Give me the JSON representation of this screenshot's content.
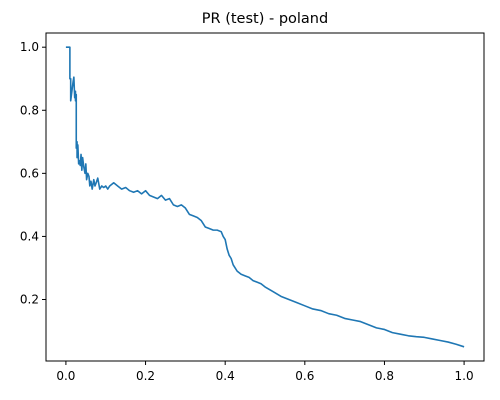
{
  "chart_data": {
    "type": "line",
    "title": "PR (test) - poland",
    "xlabel": "",
    "ylabel": "",
    "xlim": [
      -0.05,
      1.05
    ],
    "ylim": [
      0.005,
      1.045
    ],
    "x_ticks": [
      {
        "value": 0.0,
        "label": "0.0"
      },
      {
        "value": 0.2,
        "label": "0.2"
      },
      {
        "value": 0.4,
        "label": "0.4"
      },
      {
        "value": 0.6,
        "label": "0.6"
      },
      {
        "value": 0.8,
        "label": "0.8"
      },
      {
        "value": 1.0,
        "label": "1.0"
      }
    ],
    "y_ticks": [
      {
        "value": 0.2,
        "label": "0.2"
      },
      {
        "value": 0.4,
        "label": "0.4"
      },
      {
        "value": 0.6,
        "label": "0.6"
      },
      {
        "value": 0.8,
        "label": "0.8"
      },
      {
        "value": 1.0,
        "label": "1.0"
      }
    ],
    "grid": false,
    "line_color": "#1f77b4",
    "series": [
      {
        "x": [
          0.0,
          0.01,
          0.01,
          0.012,
          0.012,
          0.016,
          0.018,
          0.02,
          0.022,
          0.024,
          0.024,
          0.026,
          0.026,
          0.028,
          0.028,
          0.03,
          0.032,
          0.034,
          0.036,
          0.038,
          0.04,
          0.042,
          0.045,
          0.048,
          0.05,
          0.052,
          0.055,
          0.058,
          0.06,
          0.063,
          0.066,
          0.07,
          0.073,
          0.076,
          0.08,
          0.085,
          0.09,
          0.095,
          0.1,
          0.105,
          0.11,
          0.115,
          0.12,
          0.13,
          0.14,
          0.15,
          0.16,
          0.17,
          0.18,
          0.19,
          0.2,
          0.21,
          0.22,
          0.23,
          0.24,
          0.25,
          0.26,
          0.27,
          0.28,
          0.29,
          0.3,
          0.31,
          0.32,
          0.33,
          0.34,
          0.35,
          0.36,
          0.37,
          0.38,
          0.39,
          0.395,
          0.4,
          0.405,
          0.41,
          0.415,
          0.42,
          0.425,
          0.43,
          0.44,
          0.45,
          0.46,
          0.47,
          0.48,
          0.49,
          0.5,
          0.52,
          0.54,
          0.56,
          0.58,
          0.6,
          0.62,
          0.64,
          0.66,
          0.68,
          0.7,
          0.72,
          0.74,
          0.76,
          0.78,
          0.8,
          0.82,
          0.84,
          0.86,
          0.88,
          0.9,
          0.92,
          0.94,
          0.96,
          0.98,
          1.0
        ],
        "y": [
          1.0,
          1.0,
          0.9,
          0.9,
          0.83,
          0.87,
          0.89,
          0.905,
          0.84,
          0.86,
          0.83,
          0.85,
          0.68,
          0.7,
          0.65,
          0.69,
          0.63,
          0.64,
          0.625,
          0.66,
          0.61,
          0.65,
          0.62,
          0.6,
          0.63,
          0.58,
          0.6,
          0.59,
          0.56,
          0.575,
          0.55,
          0.58,
          0.56,
          0.57,
          0.585,
          0.55,
          0.56,
          0.555,
          0.56,
          0.55,
          0.56,
          0.565,
          0.57,
          0.56,
          0.55,
          0.555,
          0.545,
          0.54,
          0.545,
          0.535,
          0.545,
          0.53,
          0.525,
          0.52,
          0.53,
          0.515,
          0.52,
          0.5,
          0.495,
          0.5,
          0.49,
          0.47,
          0.465,
          0.46,
          0.45,
          0.43,
          0.425,
          0.42,
          0.42,
          0.415,
          0.4,
          0.39,
          0.36,
          0.34,
          0.33,
          0.31,
          0.3,
          0.29,
          0.28,
          0.275,
          0.27,
          0.26,
          0.255,
          0.25,
          0.24,
          0.225,
          0.21,
          0.2,
          0.19,
          0.18,
          0.17,
          0.165,
          0.155,
          0.15,
          0.14,
          0.135,
          0.13,
          0.12,
          0.11,
          0.105,
          0.095,
          0.09,
          0.085,
          0.082,
          0.08,
          0.075,
          0.07,
          0.065,
          0.058,
          0.05
        ]
      }
    ]
  }
}
